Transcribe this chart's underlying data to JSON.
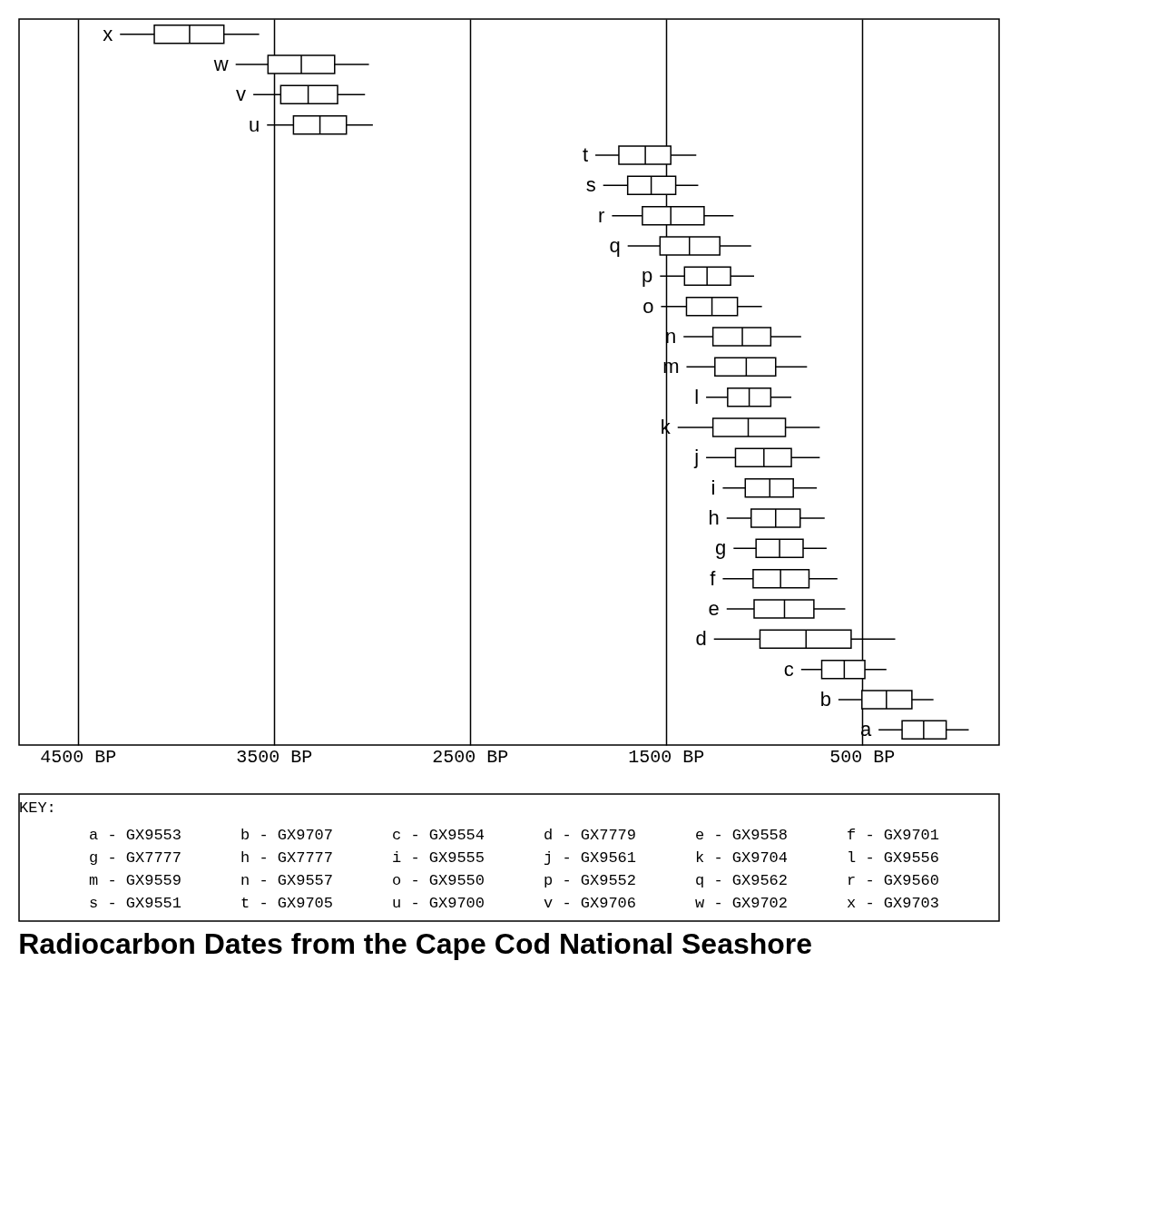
{
  "chart_data": {
    "type": "box",
    "title": "Radiocarbon Dates from the Cape Cod National Seashore",
    "categories": [
      "x",
      "w",
      "v",
      "u",
      "t",
      "s",
      "r",
      "q",
      "p",
      "o",
      "n",
      "m",
      "l",
      "k",
      "j",
      "i",
      "h",
      "g",
      "f",
      "e",
      "d",
      "c",
      "b",
      "a"
    ],
    "boxes": [
      {
        "low": 3575,
        "q1": 3755,
        "median": 3930,
        "q3": 4110,
        "high": 4285
      },
      {
        "low": 3015,
        "q1": 3190,
        "median": 3360,
        "q3": 3530,
        "high": 3695
      },
      {
        "low": 3035,
        "q1": 3175,
        "median": 3325,
        "q3": 3465,
        "high": 3605
      },
      {
        "low": 2995,
        "q1": 3130,
        "median": 3265,
        "q3": 3400,
        "high": 3535
      },
      {
        "low": 1345,
        "q1": 1475,
        "median": 1605,
        "q3": 1740,
        "high": 1860
      },
      {
        "low": 1335,
        "q1": 1450,
        "median": 1575,
        "q3": 1695,
        "high": 1820
      },
      {
        "low": 1155,
        "q1": 1305,
        "median": 1475,
        "q3": 1620,
        "high": 1775
      },
      {
        "low": 1065,
        "q1": 1225,
        "median": 1380,
        "q3": 1530,
        "high": 1695
      },
      {
        "low": 1050,
        "q1": 1170,
        "median": 1290,
        "q3": 1405,
        "high": 1530
      },
      {
        "low": 1010,
        "q1": 1135,
        "median": 1265,
        "q3": 1395,
        "high": 1525
      },
      {
        "low": 810,
        "q1": 965,
        "median": 1110,
        "q3": 1260,
        "high": 1410
      },
      {
        "low": 780,
        "q1": 940,
        "median": 1090,
        "q3": 1250,
        "high": 1395
      },
      {
        "low": 860,
        "q1": 965,
        "median": 1075,
        "q3": 1185,
        "high": 1295
      },
      {
        "low": 715,
        "q1": 890,
        "median": 1080,
        "q3": 1260,
        "high": 1440
      },
      {
        "low": 715,
        "q1": 860,
        "median": 1000,
        "q3": 1145,
        "high": 1295
      },
      {
        "low": 730,
        "q1": 850,
        "median": 970,
        "q3": 1095,
        "high": 1210
      },
      {
        "low": 690,
        "q1": 815,
        "median": 940,
        "q3": 1065,
        "high": 1190
      },
      {
        "low": 680,
        "q1": 800,
        "median": 920,
        "q3": 1040,
        "high": 1155
      },
      {
        "low": 625,
        "q1": 770,
        "median": 915,
        "q3": 1055,
        "high": 1210
      },
      {
        "low": 585,
        "q1": 745,
        "median": 895,
        "q3": 1050,
        "high": 1190
      },
      {
        "low": 330,
        "q1": 555,
        "median": 785,
        "q3": 1020,
        "high": 1255
      },
      {
        "low": 375,
        "q1": 485,
        "median": 590,
        "q3": 705,
        "high": 810
      },
      {
        "low": 135,
        "q1": 245,
        "median": 375,
        "q3": 500,
        "high": 620
      },
      {
        "low": -45,
        "q1": 70,
        "median": 185,
        "q3": 295,
        "high": 415
      }
    ],
    "xlim": [
      4800,
      -200
    ],
    "xticks": [
      {
        "value": 4500,
        "label": "4500 BP"
      },
      {
        "value": 3500,
        "label": "3500 BP"
      },
      {
        "value": 2500,
        "label": "2500 BP"
      },
      {
        "value": 1500,
        "label": "1500 BP"
      },
      {
        "value": 500,
        "label": "500 BP"
      }
    ],
    "orientation": "horizontal",
    "grid": "x",
    "tick_labels": "x",
    "annotations": [
      "KEY:",
      "a - GX9553",
      "b - GX9707",
      "c - GX9554",
      "d - GX7779",
      "e - GX9558",
      "f - GX9701",
      "g - GX7777",
      "h - GX7777",
      "i - GX9555",
      "j - GX9561",
      "k - GX9704",
      "l - GX9556",
      "m - GX9559",
      "n - GX9557",
      "o - GX9550",
      "p - GX9552",
      "q - GX9562",
      "r - GX9560",
      "s - GX9551",
      "t - GX9705",
      "u - GX9700",
      "v - GX9706",
      "w - GX9702",
      "x - GX9703"
    ]
  }
}
